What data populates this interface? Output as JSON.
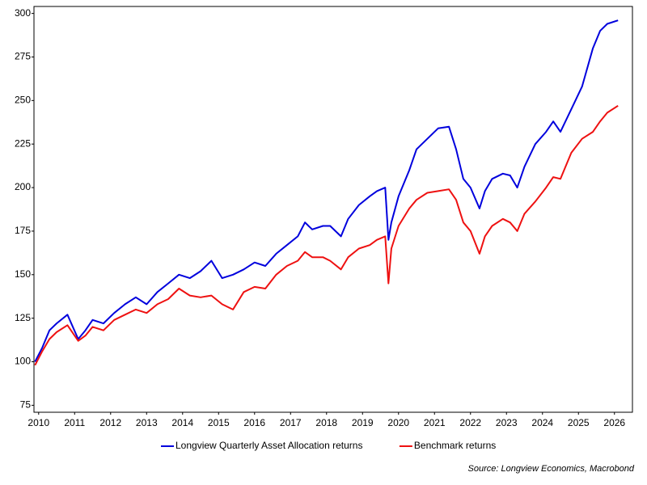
{
  "chart_data": {
    "type": "line",
    "source": "Source: Longview Economics, Macrobond",
    "x": [
      2010.4,
      2010.6,
      2010.8,
      2011.0,
      2011.3,
      2011.6,
      2011.8,
      2012.0,
      2012.3,
      2012.6,
      2012.9,
      2013.2,
      2013.5,
      2013.8,
      2014.1,
      2014.4,
      2014.7,
      2015.0,
      2015.3,
      2015.6,
      2015.9,
      2016.2,
      2016.5,
      2016.8,
      2017.1,
      2017.4,
      2017.7,
      2017.9,
      2018.1,
      2018.4,
      2018.6,
      2018.9,
      2019.1,
      2019.4,
      2019.7,
      2019.9,
      2020.13,
      2020.22,
      2020.3,
      2020.5,
      2020.8,
      2021.0,
      2021.3,
      2021.6,
      2021.9,
      2022.1,
      2022.3,
      2022.5,
      2022.75,
      2022.9,
      2023.1,
      2023.4,
      2023.6,
      2023.8,
      2024.0,
      2024.3,
      2024.6,
      2024.8,
      2025.0,
      2025.3,
      2025.6,
      2025.9,
      2026.1,
      2026.3,
      2026.6
    ],
    "series": [
      {
        "name": "Longview Quarterly Asset Allocation returns",
        "color": "#0000dd",
        "values": [
          100,
          108,
          118,
          122,
          127,
          113,
          118,
          124,
          122,
          128,
          133,
          137,
          133,
          140,
          145,
          150,
          148,
          152,
          158,
          148,
          150,
          153,
          157,
          155,
          162,
          167,
          172,
          180,
          176,
          178,
          178,
          172,
          182,
          190,
          195,
          198,
          200,
          170,
          180,
          195,
          210,
          222,
          228,
          234,
          235,
          222,
          205,
          200,
          188,
          198,
          205,
          208,
          207,
          200,
          212,
          225,
          232,
          238,
          232,
          245,
          258,
          280,
          290,
          294,
          296
        ]
      },
      {
        "name": "Benchmark returns",
        "color": "#ee1111",
        "values": [
          98,
          106,
          113,
          117,
          121,
          112,
          115,
          120,
          118,
          124,
          127,
          130,
          128,
          133,
          136,
          142,
          138,
          137,
          138,
          133,
          130,
          140,
          143,
          142,
          150,
          155,
          158,
          163,
          160,
          160,
          158,
          153,
          160,
          165,
          167,
          170,
          172,
          145,
          165,
          178,
          188,
          193,
          197,
          198,
          199,
          193,
          180,
          175,
          162,
          172,
          178,
          182,
          180,
          175,
          185,
          192,
          200,
          206,
          205,
          220,
          228,
          232,
          238,
          243,
          247
        ]
      }
    ],
    "xlim": [
      2010.37,
      2027.0
    ],
    "xticks": [
      {
        "value": 2010.5,
        "label": "2010"
      },
      {
        "value": 2011.5,
        "label": "2011"
      },
      {
        "value": 2012.5,
        "label": "2012"
      },
      {
        "value": 2013.5,
        "label": "2013"
      },
      {
        "value": 2014.5,
        "label": "2014"
      },
      {
        "value": 2015.5,
        "label": "2015"
      },
      {
        "value": 2016.5,
        "label": "2016"
      },
      {
        "value": 2017.5,
        "label": "2017"
      },
      {
        "value": 2018.5,
        "label": "2018"
      },
      {
        "value": 2019.5,
        "label": "2019"
      },
      {
        "value": 2020.5,
        "label": "2020"
      },
      {
        "value": 2021.5,
        "label": "2021"
      },
      {
        "value": 2022.5,
        "label": "2022"
      },
      {
        "value": 2023.5,
        "label": "2023"
      },
      {
        "value": 2024.5,
        "label": "2024"
      },
      {
        "value": 2025.5,
        "label": "2025"
      },
      {
        "value": 2026.5,
        "label": "2026"
      }
    ],
    "ylim": [
      71,
      304
    ],
    "yticks": [
      75,
      100,
      125,
      150,
      175,
      200,
      225,
      250,
      275,
      300
    ],
    "grid": false,
    "legend": "bottom"
  }
}
